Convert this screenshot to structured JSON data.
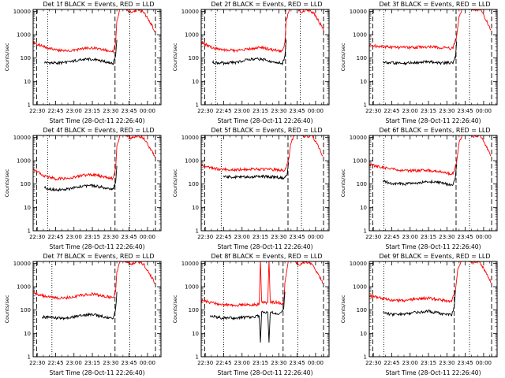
{
  "chart_data": [
    {
      "type": "line",
      "title": "Det 1f BLACK = Events, RED = LLD",
      "xlabel": "Start Time (28-Oct-11 22:26:40)",
      "ylabel": "Counts/sec",
      "x_ticks": [
        "22:30",
        "22:45",
        "23:00",
        "23:15",
        "23:30",
        "23:45",
        "00:00"
      ],
      "y_ticks": [
        "1",
        "10",
        "100",
        "1000",
        "10000"
      ],
      "y_scale": "log",
      "xlim": [
        "22:26:40",
        "00:11:00"
      ],
      "ylim": [
        1,
        12000
      ],
      "series": [
        {
          "color": "#ff0000",
          "x": [
            "22:26:40",
            "22:30",
            "22:36",
            "22:45",
            "22:55",
            "23:05",
            "23:15",
            "23:25",
            "23:32",
            "23:34",
            "23:35",
            "23:38",
            "23:40",
            "23:43",
            "23:47",
            "23:52",
            "23:57",
            "00:04",
            "00:06"
          ],
          "y": [
            480,
            400,
            290,
            220,
            200,
            240,
            270,
            215,
            190,
            480,
            4000,
            15000,
            15000,
            12000,
            9000,
            12000,
            9000,
            2300,
            1400
          ]
        },
        {
          "color": "#000000",
          "x": [
            "22:36",
            "22:45",
            "22:55",
            "23:05",
            "23:15",
            "23:25",
            "23:32",
            "23:34",
            "23:35"
          ],
          "y": [
            65,
            60,
            65,
            85,
            90,
            70,
            60,
            120,
            600
          ]
        }
      ],
      "dashed_vlines": [
        "22:29:30",
        "23:33:30",
        "00:06:30"
      ],
      "dotted_vlines": [
        "22:38:30",
        "23:45:30"
      ]
    },
    {
      "type": "line",
      "title": "Det 2f BLACK = Events, RED = LLD",
      "xlabel": "Start Time (28-Oct-11 22:26:40)",
      "ylabel": "Counts/sec",
      "x_ticks": [
        "22:30",
        "22:45",
        "23:00",
        "23:15",
        "23:30",
        "23:45",
        "00:00"
      ],
      "y_ticks": [
        "1",
        "10",
        "100",
        "1000",
        "10000"
      ],
      "y_scale": "log",
      "xlim": [
        "22:26:40",
        "00:11:00"
      ],
      "ylim": [
        1,
        12000
      ],
      "series": [
        {
          "color": "#ff0000",
          "x": [
            "22:26:40",
            "22:30",
            "22:36",
            "22:45",
            "22:55",
            "23:05",
            "23:15",
            "23:25",
            "23:33",
            "23:35",
            "23:36",
            "23:39",
            "23:42",
            "23:45",
            "23:49",
            "23:53",
            "23:58",
            "00:05",
            "00:07"
          ],
          "y": [
            460,
            390,
            280,
            220,
            210,
            250,
            280,
            225,
            190,
            480,
            4000,
            15000,
            15000,
            12000,
            9000,
            12000,
            9000,
            2300,
            1300
          ]
        },
        {
          "color": "#000000",
          "x": [
            "22:36",
            "22:45",
            "22:55",
            "23:05",
            "23:15",
            "23:25",
            "23:33",
            "23:35",
            "23:36"
          ],
          "y": [
            65,
            60,
            65,
            85,
            90,
            70,
            60,
            120,
            600
          ]
        }
      ],
      "dashed_vlines": [
        "22:29:30",
        "23:35:30",
        "00:06:30"
      ],
      "dotted_vlines": [
        "22:38:30",
        "23:47:30"
      ]
    },
    {
      "type": "line",
      "title": "Det 3f BLACK = Events, RED = LLD",
      "xlabel": "Start Time (28-Oct-11 22:26:40)",
      "ylabel": "Counts/sec",
      "x_ticks": [
        "22:30",
        "22:45",
        "23:00",
        "23:15",
        "23:30",
        "23:45",
        "00:00"
      ],
      "y_ticks": [
        "1",
        "10",
        "100",
        "1000",
        "10000"
      ],
      "y_scale": "log",
      "xlim": [
        "22:26:40",
        "00:11:00"
      ],
      "ylim": [
        1,
        12000
      ],
      "series": [
        {
          "color": "#ff0000",
          "x": [
            "22:26:40",
            "22:36",
            "22:45",
            "22:55",
            "23:05",
            "23:15",
            "23:25",
            "23:35",
            "23:38",
            "23:40",
            "23:43",
            "23:47",
            "23:52",
            "23:57",
            "00:04",
            "00:06"
          ],
          "y": [
            340,
            320,
            290,
            280,
            290,
            300,
            280,
            260,
            900,
            6000,
            15000,
            15000,
            10000,
            13000,
            2600,
            1600
          ]
        },
        {
          "color": "#000000",
          "x": [
            "22:38",
            "22:45",
            "22:55",
            "23:05",
            "23:15",
            "23:25",
            "23:35",
            "23:37",
            "23:38"
          ],
          "y": [
            70,
            60,
            60,
            65,
            70,
            60,
            65,
            110,
            500
          ]
        }
      ],
      "dashed_vlines": [
        "22:29:30",
        "23:37:30",
        "00:06:30"
      ],
      "dotted_vlines": [
        "22:38:30",
        "23:48:30"
      ]
    },
    {
      "type": "line",
      "title": "Det 4f BLACK = Events, RED = LLD",
      "xlabel": "Start Time (28-Oct-11 22:26:40)",
      "ylabel": "Counts/sec",
      "x_ticks": [
        "22:30",
        "22:45",
        "23:00",
        "23:15",
        "23:30",
        "23:45",
        "00:00"
      ],
      "y_ticks": [
        "1",
        "10",
        "100",
        "1000",
        "10000"
      ],
      "y_scale": "log",
      "xlim": [
        "22:26:40",
        "00:11:00"
      ],
      "ylim": [
        1,
        12000
      ],
      "series": [
        {
          "color": "#ff0000",
          "x": [
            "22:26:40",
            "22:30",
            "22:36",
            "22:45",
            "22:55",
            "23:05",
            "23:15",
            "23:25",
            "23:32",
            "23:34",
            "23:35",
            "23:38",
            "23:40",
            "23:43",
            "23:47",
            "23:52",
            "23:57",
            "00:04",
            "00:06"
          ],
          "y": [
            420,
            330,
            220,
            170,
            170,
            230,
            260,
            200,
            170,
            450,
            4000,
            15000,
            15000,
            12000,
            9000,
            12000,
            9000,
            2300,
            1400
          ]
        },
        {
          "color": "#000000",
          "x": [
            "22:36",
            "22:45",
            "22:55",
            "23:05",
            "23:15",
            "23:25",
            "23:32",
            "23:34",
            "23:35"
          ],
          "y": [
            70,
            55,
            60,
            80,
            85,
            70,
            60,
            120,
            600
          ]
        }
      ],
      "dashed_vlines": [
        "22:29:30",
        "23:33:30",
        "00:06:30"
      ],
      "dotted_vlines": [
        "22:38:30",
        "23:45:30"
      ]
    },
    {
      "type": "line",
      "title": "Det 5f BLACK = Events, RED = LLD",
      "xlabel": "Start Time (28-Oct-11 22:26:40)",
      "ylabel": "Counts/sec",
      "x_ticks": [
        "22:30",
        "22:45",
        "23:00",
        "23:15",
        "23:30",
        "23:45",
        "00:00"
      ],
      "y_ticks": [
        "1",
        "10",
        "100",
        "1000",
        "10000"
      ],
      "y_scale": "log",
      "xlim": [
        "22:26:40",
        "00:11:00"
      ],
      "ylim": [
        1,
        12000
      ],
      "series": [
        {
          "color": "#ff0000",
          "x": [
            "22:26:40",
            "22:36",
            "22:45",
            "22:55",
            "23:05",
            "23:15",
            "23:25",
            "23:35",
            "23:38",
            "23:40",
            "23:43",
            "23:47",
            "23:52",
            "23:57",
            "00:04",
            "00:06"
          ],
          "y": [
            620,
            470,
            420,
            410,
            420,
            430,
            420,
            380,
            1100,
            6000,
            15000,
            15000,
            10000,
            13000,
            2600,
            1600
          ]
        },
        {
          "color": "#000000",
          "x": [
            "22:45",
            "22:55",
            "23:05",
            "23:15",
            "23:25",
            "23:35",
            "23:37",
            "23:38"
          ],
          "y": [
            200,
            200,
            205,
            210,
            205,
            180,
            280,
            900
          ]
        }
      ],
      "dashed_vlines": [
        "22:29:30",
        "23:37:30",
        "00:06:30"
      ],
      "dotted_vlines": [
        "22:43:00",
        "23:48:30"
      ]
    },
    {
      "type": "line",
      "title": "Det 6f BLACK = Events, RED = LLD",
      "xlabel": "Start Time (28-Oct-11 22:26:40)",
      "ylabel": "Counts/sec",
      "x_ticks": [
        "22:30",
        "22:45",
        "23:00",
        "23:15",
        "23:30",
        "23:45",
        "00:00"
      ],
      "y_ticks": [
        "1",
        "10",
        "100",
        "1000",
        "10000"
      ],
      "y_scale": "log",
      "xlim": [
        "22:26:40",
        "00:11:00"
      ],
      "ylim": [
        1,
        12000
      ],
      "series": [
        {
          "color": "#ff0000",
          "x": [
            "22:26:40",
            "22:36",
            "22:45",
            "22:55",
            "23:05",
            "23:15",
            "23:25",
            "23:35",
            "23:38",
            "23:40",
            "23:43",
            "23:47",
            "23:52",
            "23:57",
            "00:04",
            "00:06"
          ],
          "y": [
            700,
            520,
            440,
            380,
            370,
            380,
            330,
            270,
            900,
            6000,
            15000,
            15000,
            10000,
            13000,
            2600,
            1600
          ]
        },
        {
          "color": "#000000",
          "x": [
            "22:38",
            "22:45",
            "22:55",
            "23:05",
            "23:15",
            "23:25",
            "23:35",
            "23:37",
            "23:38"
          ],
          "y": [
            130,
            105,
            100,
            110,
            130,
            110,
            90,
            200,
            700
          ]
        }
      ],
      "dashed_vlines": [
        "22:29:30",
        "23:37:30",
        "00:06:30"
      ],
      "dotted_vlines": [
        "22:38:30",
        "23:48:30"
      ]
    },
    {
      "type": "line",
      "title": "Det 7f BLACK = Events, RED = LLD",
      "xlabel": "Start Time (28-Oct-11 22:26:40)",
      "ylabel": "Counts/sec",
      "x_ticks": [
        "22:30",
        "22:45",
        "23:00",
        "23:15",
        "23:30",
        "23:45",
        "00:00"
      ],
      "y_ticks": [
        "1",
        "10",
        "100",
        "1000",
        "10000"
      ],
      "y_scale": "log",
      "xlim": [
        "22:26:40",
        "00:11:00"
      ],
      "ylim": [
        1,
        12000
      ],
      "series": [
        {
          "color": "#ff0000",
          "x": [
            "22:26:40",
            "22:30",
            "22:36",
            "22:45",
            "22:55",
            "23:05",
            "23:15",
            "23:25",
            "23:32",
            "23:34",
            "23:35",
            "23:38",
            "23:40",
            "23:43",
            "23:47",
            "23:52",
            "23:57",
            "00:04",
            "00:06"
          ],
          "y": [
            600,
            480,
            390,
            330,
            340,
            420,
            480,
            400,
            330,
            700,
            4000,
            15000,
            15000,
            12000,
            9000,
            12000,
            9000,
            2300,
            1400
          ]
        },
        {
          "color": "#000000",
          "x": [
            "22:34",
            "22:45",
            "22:55",
            "23:05",
            "23:15",
            "23:25",
            "23:32",
            "23:34",
            "23:35"
          ],
          "y": [
            50,
            45,
            45,
            60,
            65,
            50,
            45,
            110,
            600
          ]
        }
      ],
      "dashed_vlines": [
        "22:29:30",
        "23:33:30",
        "00:06:30"
      ],
      "dotted_vlines": [
        "22:42:00",
        "23:45:30"
      ]
    },
    {
      "type": "line",
      "title": "Det 8f BLACK = Events, RED = LLD",
      "xlabel": "Start Time (28-Oct-11 22:26:40)",
      "ylabel": "Counts/sec",
      "x_ticks": [
        "22:30",
        "22:45",
        "23:00",
        "23:15",
        "23:30",
        "23:45",
        "00:00"
      ],
      "y_ticks": [
        "1",
        "10",
        "100",
        "1000",
        "10000"
      ],
      "y_scale": "log",
      "xlim": [
        "22:26:40",
        "00:11:00"
      ],
      "ylim": [
        1,
        12000
      ],
      "series": [
        {
          "color": "#ff0000",
          "x": [
            "22:26:40",
            "22:36",
            "22:45",
            "22:55",
            "23:05",
            "23:10",
            "23:14",
            "23:15",
            "23:16",
            "23:21",
            "23:22",
            "23:23",
            "23:30",
            "23:34",
            "23:35",
            "23:38",
            "23:40",
            "23:43",
            "23:47",
            "23:52",
            "23:57",
            "00:04",
            "00:06"
          ],
          "y": [
            260,
            200,
            170,
            160,
            170,
            170,
            170,
            15000,
            210,
            210,
            15000,
            220,
            210,
            180,
            1500,
            15000,
            15000,
            12000,
            9000,
            12000,
            9000,
            2300,
            1400
          ]
        },
        {
          "color": "#000000",
          "x": [
            "22:34",
            "22:45",
            "22:55",
            "23:05",
            "23:14",
            "23:15",
            "23:16",
            "23:21",
            "23:22",
            "23:23",
            "23:30",
            "23:34",
            "23:35"
          ],
          "y": [
            55,
            45,
            45,
            50,
            55,
            4,
            80,
            80,
            4,
            80,
            70,
            120,
            600
          ]
        }
      ],
      "dashed_vlines": [
        "22:29:30",
        "23:33:30",
        "00:06:30"
      ],
      "dotted_vlines": [
        "22:45:00",
        "23:45:30"
      ]
    },
    {
      "type": "line",
      "title": "Det 9f BLACK = Events, RED = LLD",
      "xlabel": "Start Time (28-Oct-11 22:26:40)",
      "ylabel": "Counts/sec",
      "x_ticks": [
        "22:30",
        "22:45",
        "23:00",
        "23:15",
        "23:30",
        "23:45",
        "00:00"
      ],
      "y_ticks": [
        "1",
        "10",
        "100",
        "1000",
        "10000"
      ],
      "y_scale": "log",
      "xlim": [
        "22:26:40",
        "00:11:00"
      ],
      "ylim": [
        1,
        12000
      ],
      "series": [
        {
          "color": "#ff0000",
          "x": [
            "22:26:40",
            "22:36",
            "22:45",
            "22:55",
            "23:05",
            "23:15",
            "23:25",
            "23:34",
            "23:37",
            "23:39",
            "23:42",
            "23:46",
            "23:51",
            "23:56",
            "00:04",
            "00:06"
          ],
          "y": [
            420,
            320,
            260,
            250,
            300,
            320,
            270,
            230,
            700,
            6000,
            15000,
            15000,
            10000,
            13000,
            2600,
            1600
          ]
        },
        {
          "color": "#000000",
          "x": [
            "22:38",
            "22:45",
            "22:55",
            "23:05",
            "23:15",
            "23:25",
            "23:34",
            "23:36",
            "23:37"
          ],
          "y": [
            80,
            65,
            65,
            80,
            90,
            70,
            60,
            130,
            700
          ]
        }
      ],
      "dashed_vlines": [
        "22:29:30",
        "23:36:00",
        "00:06:30"
      ],
      "dotted_vlines": [
        "22:38:30",
        "23:48:30"
      ]
    }
  ]
}
